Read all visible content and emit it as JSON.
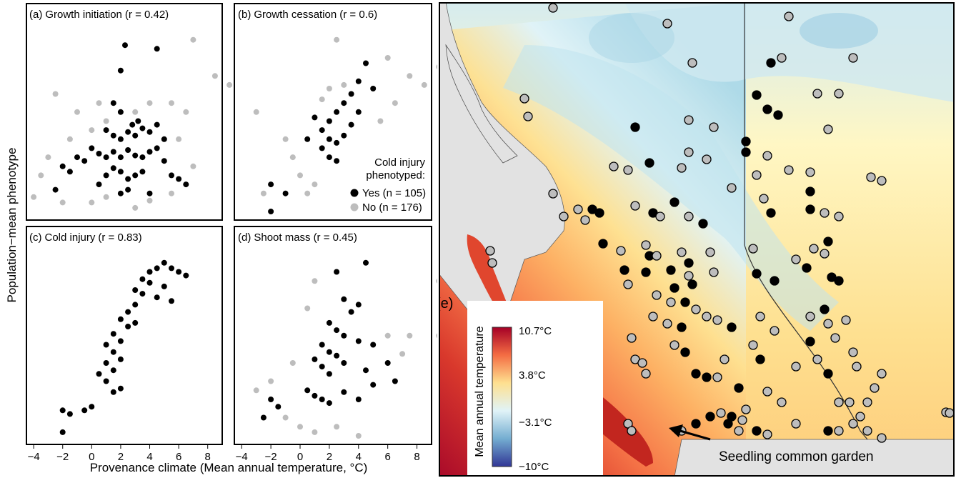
{
  "figure": {
    "y_axis_label": "Population−mean phenotype",
    "x_axis_label": "Provenance climate (Mean annual temperature, °C)",
    "x_ticks": [
      "−4",
      "−2",
      "0",
      "2",
      "4",
      "6",
      "8"
    ],
    "colors": {
      "cold_injury_yes": "#000000",
      "cold_injury_no": "#bdbdbd",
      "frame": "#000000"
    }
  },
  "panels": {
    "a": {
      "tag": "(a)",
      "name": "Growth initiation",
      "r_text": "(r = 0.42)"
    },
    "b": {
      "tag": "(b)",
      "name": "Growth cessation",
      "r_text": "(r = 0.6)"
    },
    "c": {
      "tag": "(c)",
      "name": "Cold injury",
      "r_text": "(r = 0.83)"
    },
    "d": {
      "tag": "(d)",
      "name": "Shoot mass",
      "r_text": "(r = 0.45)"
    }
  },
  "legend": {
    "title_line1": "Cold injury",
    "title_line2": "phenotyped:",
    "yes_label": "Yes (n = 105)",
    "no_label": "No (n = 176)"
  },
  "map": {
    "tag": "(e)",
    "colorbar_title": "Mean annual temperature",
    "colorbar_ticks": [
      "10.7°C",
      "3.8°C",
      "−3.1°C",
      "−10°C"
    ],
    "annotation": "Seedling common garden",
    "colorbar_colors": [
      "#a50026",
      "#f46d43",
      "#fee090",
      "#e0f3f8",
      "#74add1",
      "#313695"
    ]
  },
  "chart_data": [
    {
      "type": "scatter",
      "panel": "a",
      "title": "Growth initiation",
      "correlation_r": 0.42,
      "x_range": [
        -4.5,
        9
      ],
      "xlabel": "Provenance climate (Mean annual temperature, °C)",
      "series": [
        {
          "name": "Yes (n = 105)",
          "color": "#000000",
          "points": [
            [
              2.3,
              0.92
            ],
            [
              2.0,
              0.78
            ],
            [
              4.5,
              0.9
            ],
            [
              1.5,
              0.6
            ],
            [
              2.0,
              0.55
            ],
            [
              2.8,
              0.48
            ],
            [
              3.2,
              0.5
            ],
            [
              1.0,
              0.45
            ],
            [
              1.5,
              0.42
            ],
            [
              2.0,
              0.4
            ],
            [
              2.5,
              0.44
            ],
            [
              3.0,
              0.42
            ],
            [
              3.5,
              0.46
            ],
            [
              4.0,
              0.44
            ],
            [
              4.5,
              0.48
            ],
            [
              5.0,
              0.4
            ],
            [
              -1.0,
              0.3
            ],
            [
              -0.5,
              0.28
            ],
            [
              0.0,
              0.35
            ],
            [
              0.5,
              0.32
            ],
            [
              1.0,
              0.3
            ],
            [
              1.5,
              0.33
            ],
            [
              2.0,
              0.3
            ],
            [
              2.5,
              0.34
            ],
            [
              3.0,
              0.31
            ],
            [
              3.5,
              0.3
            ],
            [
              4.0,
              0.33
            ],
            [
              4.5,
              0.35
            ],
            [
              5.0,
              0.28
            ],
            [
              -2.0,
              0.25
            ],
            [
              -1.5,
              0.22
            ],
            [
              1.0,
              0.2
            ],
            [
              1.5,
              0.24
            ],
            [
              2.0,
              0.22
            ],
            [
              2.5,
              0.18
            ],
            [
              3.0,
              0.2
            ],
            [
              3.5,
              0.22
            ],
            [
              5.5,
              0.2
            ],
            [
              6.0,
              0.18
            ],
            [
              -2.5,
              0.12
            ],
            [
              0.5,
              0.15
            ],
            [
              2.0,
              0.1
            ],
            [
              2.5,
              0.12
            ],
            [
              4.0,
              0.1
            ],
            [
              6.5,
              0.15
            ]
          ]
        },
        {
          "name": "No (n = 176)",
          "color": "#bdbdbd",
          "points": [
            [
              7.0,
              0.95
            ],
            [
              8.5,
              0.75
            ],
            [
              9.5,
              0.7
            ],
            [
              6.5,
              0.55
            ],
            [
              -2.5,
              0.65
            ],
            [
              -1.0,
              0.55
            ],
            [
              0.5,
              0.6
            ],
            [
              5.5,
              0.6
            ],
            [
              -3.0,
              0.3
            ],
            [
              -3.5,
              0.2
            ],
            [
              -4.0,
              0.08
            ],
            [
              -2.0,
              0.05
            ],
            [
              0.0,
              0.05
            ],
            [
              1.0,
              0.08
            ],
            [
              3.0,
              0.02
            ],
            [
              4.0,
              0.06
            ],
            [
              5.5,
              0.1
            ],
            [
              7.0,
              0.25
            ],
            [
              -1.5,
              0.4
            ],
            [
              0.0,
              0.45
            ],
            [
              1.0,
              0.5
            ],
            [
              3.0,
              0.55
            ],
            [
              4.0,
              0.6
            ],
            [
              6.0,
              0.4
            ]
          ]
        }
      ]
    },
    {
      "type": "scatter",
      "panel": "b",
      "title": "Growth cessation",
      "correlation_r": 0.6,
      "x_range": [
        -4.5,
        9
      ],
      "series": [
        {
          "name": "Yes (n = 105)",
          "color": "#000000",
          "points": [
            [
              4.5,
              0.82
            ],
            [
              4.0,
              0.72
            ],
            [
              3.5,
              0.65
            ],
            [
              5.0,
              0.68
            ],
            [
              3.0,
              0.6
            ],
            [
              2.5,
              0.55
            ],
            [
              2.0,
              0.5
            ],
            [
              1.5,
              0.45
            ],
            [
              2.0,
              0.4
            ],
            [
              2.5,
              0.38
            ],
            [
              3.0,
              0.42
            ],
            [
              3.5,
              0.48
            ],
            [
              4.0,
              0.55
            ],
            [
              1.0,
              0.52
            ],
            [
              1.5,
              0.35
            ],
            [
              2.0,
              0.3
            ],
            [
              2.5,
              0.28
            ],
            [
              0.5,
              0.4
            ],
            [
              -2.0,
              0.15
            ],
            [
              -1.0,
              0.1
            ],
            [
              -2.0,
              0.0
            ]
          ]
        },
        {
          "name": "No (n = 176)",
          "color": "#bdbdbd",
          "points": [
            [
              2.5,
              0.95
            ],
            [
              6.0,
              0.85
            ],
            [
              7.5,
              0.75
            ],
            [
              8.5,
              0.7
            ],
            [
              9.5,
              0.8
            ],
            [
              -3.0,
              0.55
            ],
            [
              -1.0,
              0.4
            ],
            [
              -0.5,
              0.3
            ],
            [
              0.0,
              0.2
            ],
            [
              0.5,
              0.1
            ],
            [
              1.0,
              0.15
            ],
            [
              -2.5,
              0.1
            ],
            [
              5.5,
              0.5
            ],
            [
              6.5,
              0.6
            ],
            [
              1.5,
              0.62
            ],
            [
              2.0,
              0.68
            ],
            [
              3.0,
              0.7
            ]
          ]
        }
      ]
    },
    {
      "type": "scatter",
      "panel": "c",
      "title": "Cold injury",
      "correlation_r": 0.83,
      "x_range": [
        -4.5,
        9
      ],
      "series": [
        {
          "name": "Yes (n = 105)",
          "color": "#000000",
          "points": [
            [
              5.0,
              0.95
            ],
            [
              4.5,
              0.92
            ],
            [
              5.5,
              0.92
            ],
            [
              4.0,
              0.9
            ],
            [
              6.0,
              0.9
            ],
            [
              6.5,
              0.88
            ],
            [
              3.5,
              0.86
            ],
            [
              4.0,
              0.84
            ],
            [
              5.0,
              0.82
            ],
            [
              3.0,
              0.8
            ],
            [
              3.5,
              0.78
            ],
            [
              4.5,
              0.76
            ],
            [
              5.5,
              0.74
            ],
            [
              3.0,
              0.72
            ],
            [
              2.5,
              0.68
            ],
            [
              2.0,
              0.64
            ],
            [
              2.5,
              0.6
            ],
            [
              3.0,
              0.62
            ],
            [
              1.5,
              0.56
            ],
            [
              2.0,
              0.52
            ],
            [
              1.0,
              0.5
            ],
            [
              1.5,
              0.46
            ],
            [
              2.0,
              0.42
            ],
            [
              1.0,
              0.4
            ],
            [
              1.5,
              0.36
            ],
            [
              0.5,
              0.34
            ],
            [
              1.0,
              0.3
            ],
            [
              2.0,
              0.26
            ],
            [
              1.5,
              0.24
            ],
            [
              -0.5,
              0.14
            ],
            [
              0.0,
              0.16
            ],
            [
              -2.0,
              0.14
            ],
            [
              -1.5,
              0.12
            ],
            [
              -2.0,
              0.02
            ]
          ]
        },
        {
          "name": "No (n = 176)",
          "color": "#bdbdbd",
          "points": []
        }
      ]
    },
    {
      "type": "scatter",
      "panel": "d",
      "title": "Shoot mass",
      "correlation_r": 0.45,
      "x_range": [
        -4.5,
        9
      ],
      "series": [
        {
          "name": "Yes (n = 105)",
          "color": "#000000",
          "points": [
            [
              4.5,
              0.95
            ],
            [
              2.5,
              0.9
            ],
            [
              3.0,
              0.75
            ],
            [
              4.0,
              0.72
            ],
            [
              3.5,
              0.68
            ],
            [
              2.0,
              0.62
            ],
            [
              2.5,
              0.58
            ],
            [
              3.0,
              0.55
            ],
            [
              4.0,
              0.52
            ],
            [
              5.0,
              0.5
            ],
            [
              1.5,
              0.5
            ],
            [
              2.0,
              0.46
            ],
            [
              2.5,
              0.44
            ],
            [
              3.0,
              0.4
            ],
            [
              1.0,
              0.42
            ],
            [
              1.5,
              0.38
            ],
            [
              2.0,
              0.34
            ],
            [
              4.5,
              0.36
            ],
            [
              6.0,
              0.4
            ],
            [
              -2.0,
              0.2
            ],
            [
              -1.5,
              0.16
            ],
            [
              0.5,
              0.25
            ],
            [
              1.0,
              0.22
            ],
            [
              1.5,
              0.2
            ],
            [
              2.0,
              0.18
            ],
            [
              3.0,
              0.24
            ],
            [
              4.0,
              0.2
            ],
            [
              5.0,
              0.28
            ],
            [
              6.5,
              0.3
            ],
            [
              -2.5,
              0.1
            ]
          ]
        },
        {
          "name": "No (n = 176)",
          "color": "#bdbdbd",
          "points": [
            [
              1.0,
              0.85
            ],
            [
              0.5,
              0.7
            ],
            [
              9.5,
              0.85
            ],
            [
              9.5,
              0.55
            ],
            [
              7.5,
              0.55
            ],
            [
              -2.0,
              0.3
            ],
            [
              -3.0,
              0.25
            ],
            [
              -1.0,
              0.1
            ],
            [
              0.0,
              0.05
            ],
            [
              1.0,
              0.02
            ],
            [
              2.5,
              0.05
            ],
            [
              4.0,
              0.0
            ],
            [
              -0.5,
              0.4
            ],
            [
              6.0,
              0.55
            ],
            [
              7.0,
              0.45
            ]
          ]
        }
      ]
    }
  ]
}
